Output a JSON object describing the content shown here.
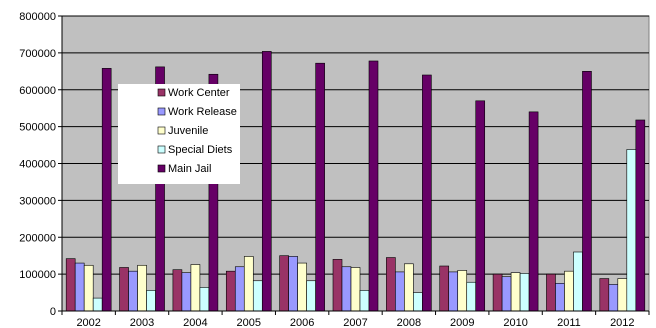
{
  "chart_data": {
    "type": "bar",
    "title": "",
    "xlabel": "",
    "ylabel": "",
    "categories": [
      "2002",
      "2003",
      "2004",
      "2005",
      "2006",
      "2007",
      "2008",
      "2009",
      "2010",
      "2011",
      "2012"
    ],
    "ylim": [
      0,
      800000
    ],
    "yticks": [
      0,
      100000,
      200000,
      300000,
      400000,
      500000,
      600000,
      700000,
      800000
    ],
    "ytick_labels": [
      "0",
      "100000",
      "200000",
      "300000",
      "400000",
      "500000",
      "600000",
      "700000",
      "800000"
    ],
    "grid": "horizontal",
    "legend_position": "inside-top-left",
    "plot_background": "#c0c0c0",
    "series": [
      {
        "name": "Work Center",
        "color": "#993366",
        "values": [
          142000,
          118000,
          112000,
          108000,
          150000,
          140000,
          145000,
          122000,
          100000,
          100000,
          88000
        ]
      },
      {
        "name": "Work Release",
        "color": "#9999ff",
        "values": [
          130000,
          108000,
          104000,
          120000,
          148000,
          120000,
          106000,
          106000,
          93000,
          75000,
          72000
        ]
      },
      {
        "name": "Juvenile",
        "color": "#ffffcc",
        "values": [
          124000,
          124000,
          126000,
          148000,
          130000,
          118000,
          128000,
          110000,
          104000,
          108000,
          88000
        ]
      },
      {
        "name": "Special Diets",
        "color": "#ccffff",
        "values": [
          35000,
          56000,
          64000,
          82000,
          82000,
          56000,
          50000,
          78000,
          102000,
          160000,
          438000
        ]
      },
      {
        "name": "Main Jail",
        "color": "#660066",
        "values": [
          658000,
          662000,
          642000,
          704000,
          672000,
          678000,
          640000,
          570000,
          540000,
          650000,
          518000
        ]
      }
    ]
  }
}
